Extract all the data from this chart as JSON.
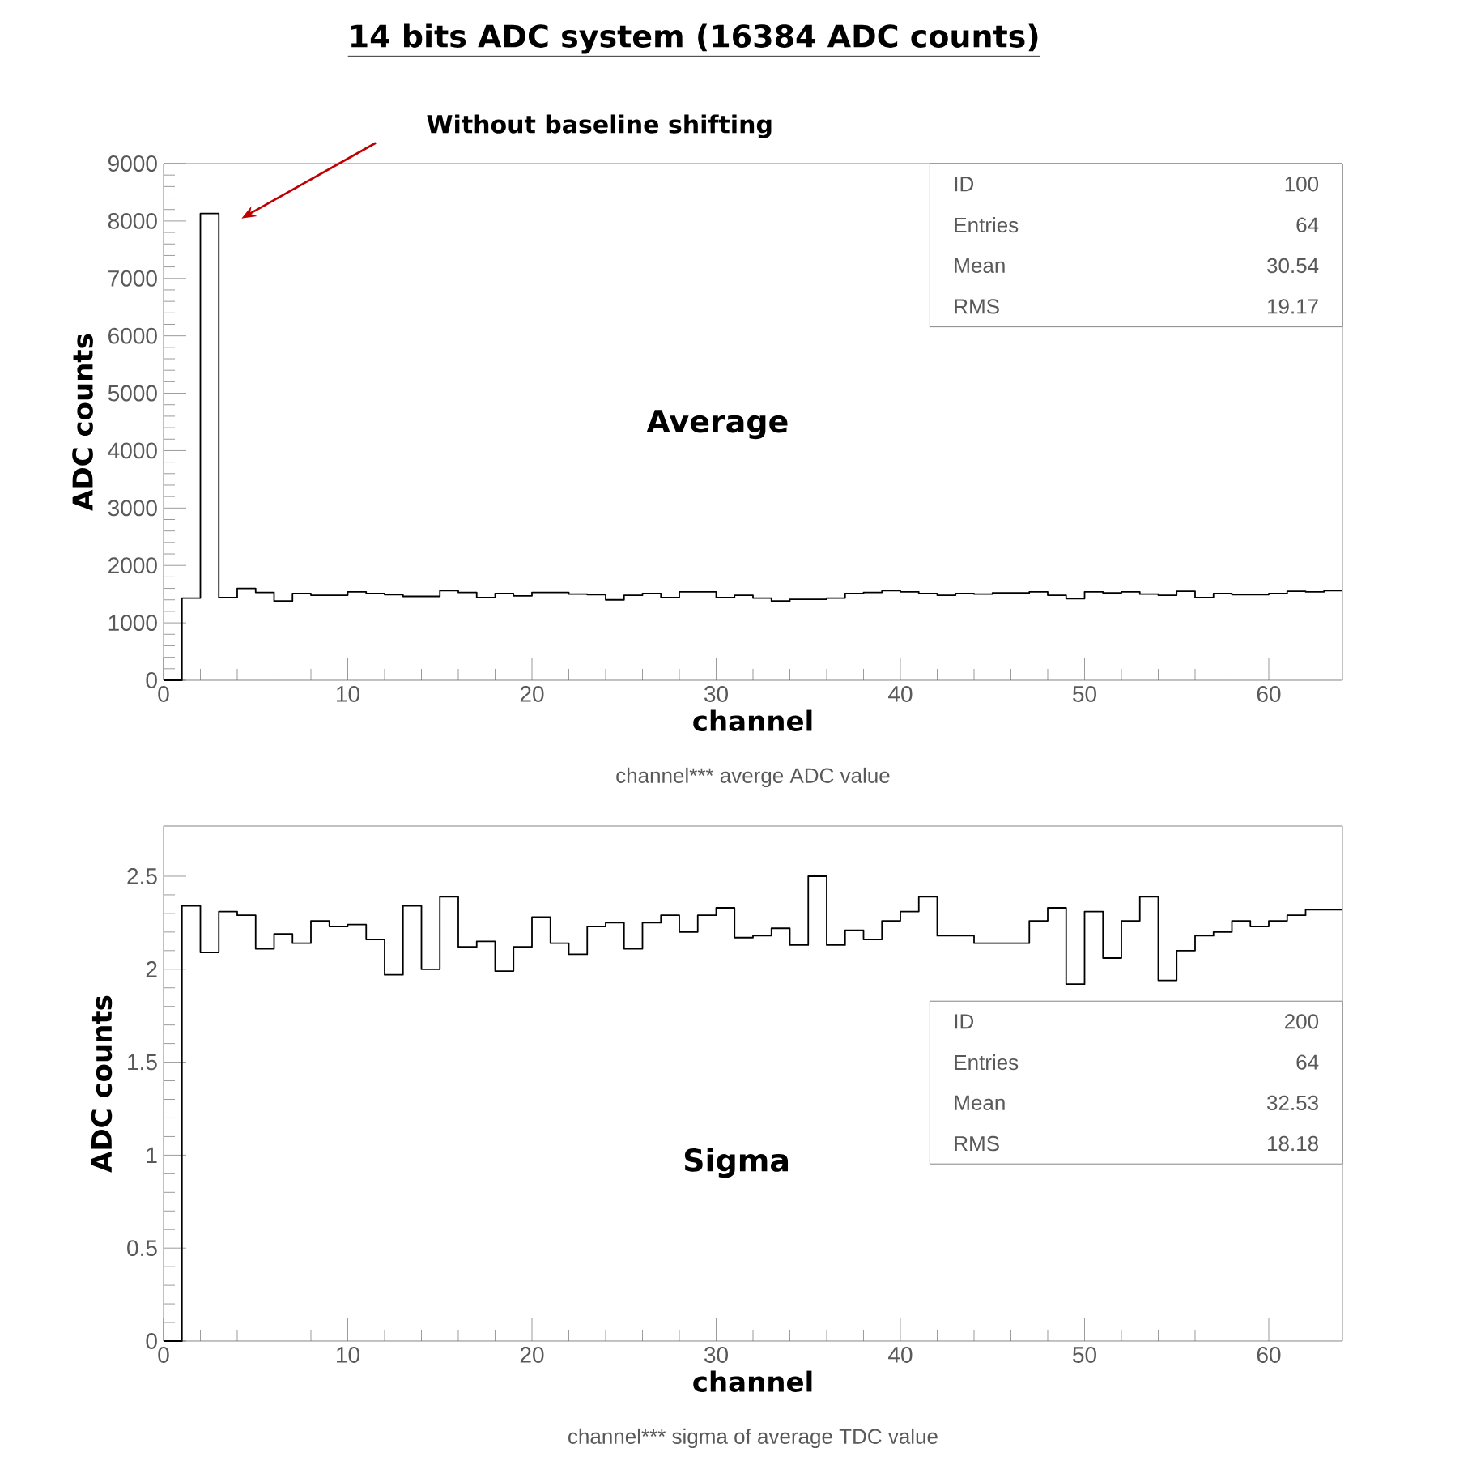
{
  "chart_data": [
    {
      "type": "histogram",
      "title": "14 bits ADC system (16384 ADC counts)",
      "xlabel": "channel",
      "ylabel": "ADC counts",
      "color": "#000000",
      "bins": [
        0,
        1,
        2,
        3,
        4,
        5,
        6,
        7,
        8,
        9,
        10,
        11,
        12,
        13,
        14,
        15,
        16,
        17,
        18,
        19,
        20,
        21,
        22,
        23,
        24,
        25,
        26,
        27,
        28,
        29,
        30,
        31,
        32,
        33,
        34,
        35,
        36,
        37,
        38,
        39,
        40,
        41,
        42,
        43,
        44,
        45,
        46,
        47,
        48,
        49,
        50,
        51,
        52,
        53,
        54,
        55,
        56,
        57,
        58,
        59,
        60,
        61,
        62,
        63,
        64
      ],
      "values": [
        0,
        1430,
        8130,
        1440,
        1600,
        1530,
        1380,
        1510,
        1480,
        1480,
        1540,
        1510,
        1490,
        1460,
        1460,
        1560,
        1530,
        1440,
        1510,
        1470,
        1530,
        1530,
        1500,
        1490,
        1400,
        1480,
        1510,
        1440,
        1540,
        1540,
        1440,
        1480,
        1430,
        1380,
        1410,
        1410,
        1430,
        1510,
        1530,
        1560,
        1540,
        1510,
        1480,
        1510,
        1500,
        1520,
        1520,
        1540,
        1480,
        1420,
        1540,
        1520,
        1540,
        1500,
        1480,
        1550,
        1440,
        1510,
        1490,
        1490,
        1510,
        1550,
        1540,
        1560
      ],
      "xlim": [
        0,
        64
      ],
      "ylim": [
        0,
        9000
      ],
      "xticks": [
        0,
        10,
        20,
        30,
        40,
        50,
        60
      ],
      "yticks": [
        0,
        1000,
        2000,
        3000,
        4000,
        5000,
        6000,
        7000,
        8000,
        9000
      ],
      "annotations": [
        "Average",
        "ID",
        "100",
        "Entries",
        "64",
        "Mean",
        "30.54",
        "RMS",
        "19.17",
        "channel*** averge ADC value",
        "Without baseline shifting"
      ]
    },
    {
      "type": "histogram",
      "xlabel": "channel",
      "ylabel": "ADC counts",
      "color": "#000000",
      "bins": [
        0,
        1,
        2,
        3,
        4,
        5,
        6,
        7,
        8,
        9,
        10,
        11,
        12,
        13,
        14,
        15,
        16,
        17,
        18,
        19,
        20,
        21,
        22,
        23,
        24,
        25,
        26,
        27,
        28,
        29,
        30,
        31,
        32,
        33,
        34,
        35,
        36,
        37,
        38,
        39,
        40,
        41,
        42,
        43,
        44,
        45,
        46,
        47,
        48,
        49,
        50,
        51,
        52,
        53,
        54,
        55,
        56,
        57,
        58,
        59,
        60,
        61,
        62,
        63,
        64
      ],
      "values": [
        0,
        2.34,
        2.09,
        2.31,
        2.29,
        2.11,
        2.19,
        2.14,
        2.26,
        2.23,
        2.24,
        2.16,
        1.97,
        2.34,
        2.0,
        2.39,
        2.12,
        2.15,
        1.99,
        2.12,
        2.28,
        2.14,
        2.08,
        2.23,
        2.25,
        2.11,
        2.25,
        2.29,
        2.2,
        2.29,
        2.33,
        2.17,
        2.18,
        2.22,
        2.13,
        2.5,
        2.13,
        2.21,
        2.16,
        2.26,
        2.31,
        2.39,
        2.18,
        2.18,
        2.14,
        2.14,
        2.14,
        2.26,
        2.33,
        1.92,
        2.31,
        2.06,
        2.26,
        2.39,
        1.94,
        2.1,
        2.18,
        2.2,
        2.26,
        2.23,
        2.26,
        2.29,
        2.32,
        2.32
      ],
      "xlim": [
        0,
        64
      ],
      "ylim": [
        0,
        2.77
      ],
      "xticks": [
        0,
        10,
        20,
        30,
        40,
        50,
        60
      ],
      "yticks": [
        0,
        0.5,
        1,
        1.5,
        2,
        2.5
      ],
      "annotations": [
        "Sigma",
        "ID",
        "200",
        "Entries",
        "64",
        "Mean",
        "32.53",
        "RMS",
        "18.18",
        "channel*** sigma of average TDC value"
      ]
    }
  ]
}
